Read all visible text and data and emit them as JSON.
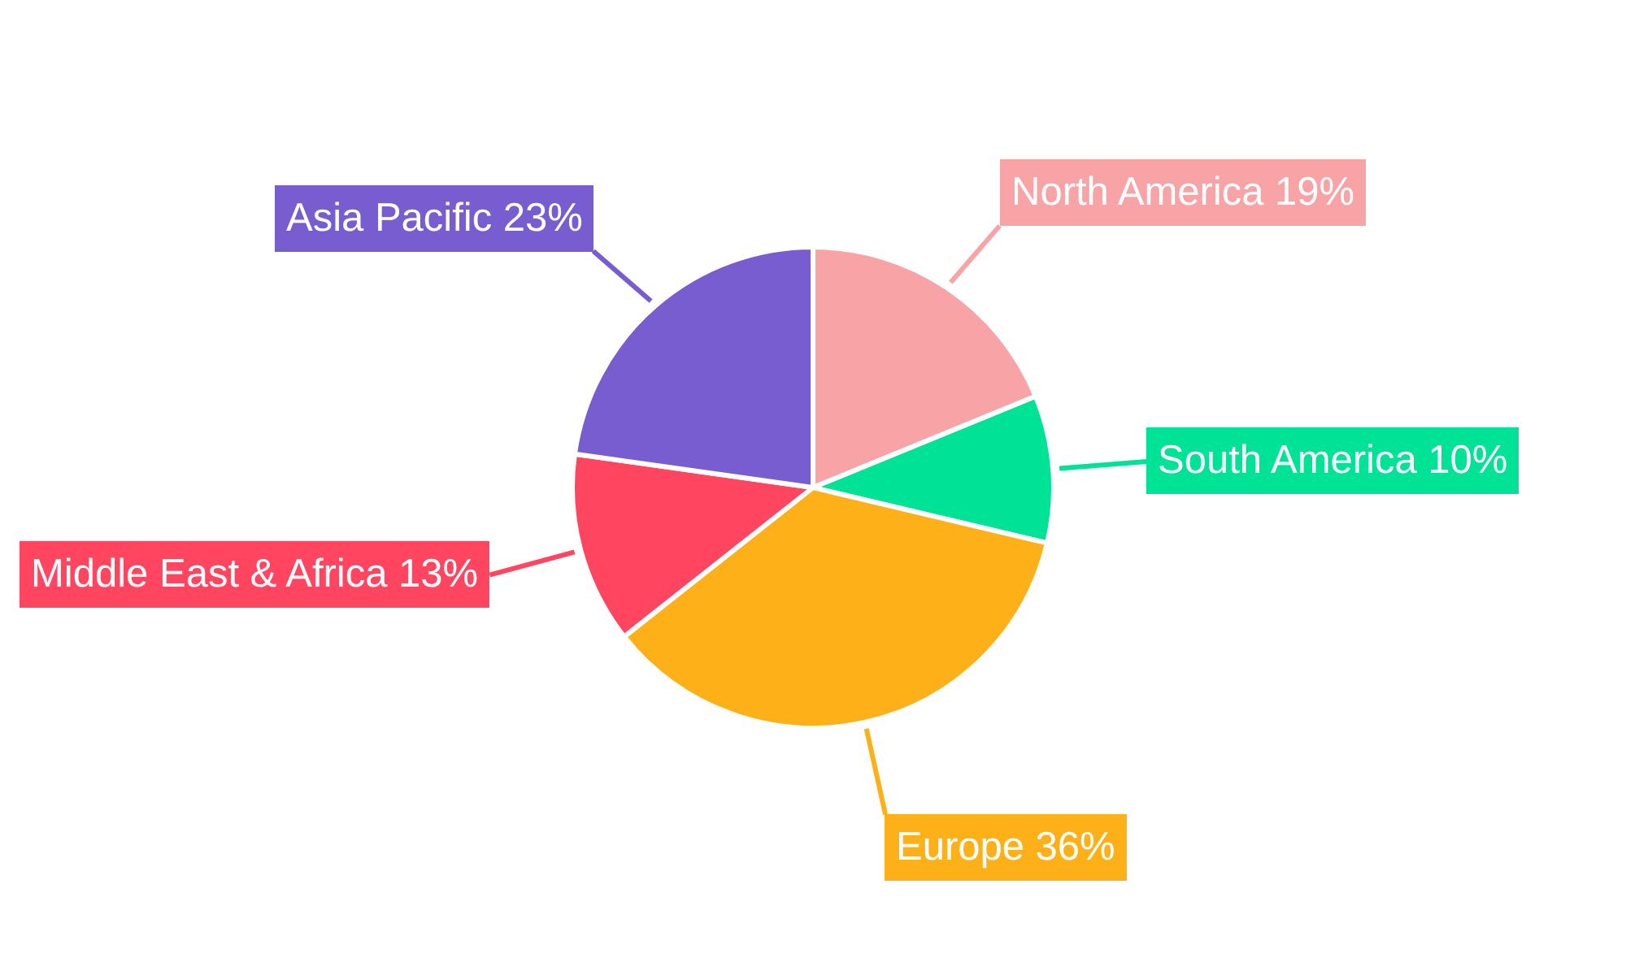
{
  "chart_data": {
    "type": "pie",
    "categories": [
      "North America",
      "South America",
      "Europe",
      "Middle East & Africa",
      "Asia Pacific"
    ],
    "values": [
      19,
      10,
      36,
      13,
      23
    ],
    "value_labels": [
      "19%",
      "10%",
      "36%",
      "13%",
      "23%"
    ],
    "colors": [
      "#f8a3a6",
      "#00e396",
      "#feb019",
      "#ff4560",
      "#775dd0"
    ]
  }
}
